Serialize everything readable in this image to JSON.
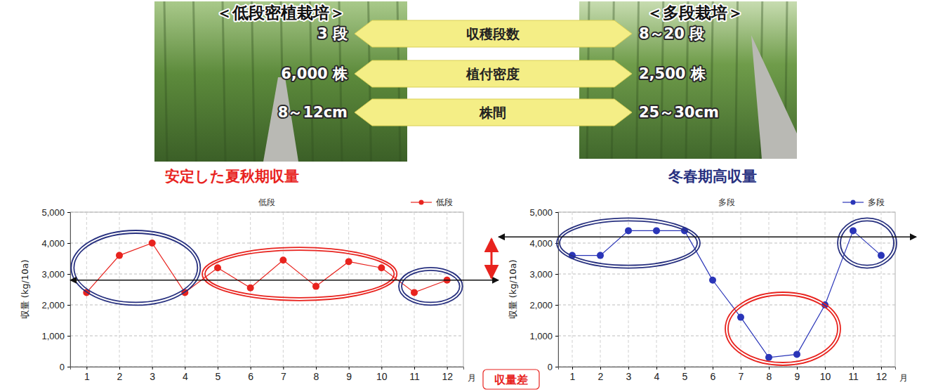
{
  "comparison": {
    "rows": [
      "収穫段数",
      "植付密度",
      "株間"
    ],
    "left": {
      "title": "＜低段密植栽培＞",
      "caption": "安定した夏秋期収量",
      "values": [
        "3 段",
        "6,000 株",
        "8～12cm"
      ]
    },
    "right": {
      "title": "＜多段栽培＞",
      "caption": "冬春期高収量",
      "values": [
        "8～20 段",
        "2,500 株",
        "25～30cm"
      ]
    }
  },
  "annotation": "収量差",
  "chart_data": [
    {
      "type": "line",
      "title": "低段",
      "x_label": "月",
      "y_label": "収量 (kg/10a)",
      "categories": [
        "1",
        "2",
        "3",
        "4",
        "5",
        "6",
        "7",
        "8",
        "9",
        "10",
        "11",
        "12"
      ],
      "series": [
        {
          "name": "低段",
          "color": "#e8231e",
          "marker": "circle",
          "values": [
            2400,
            3600,
            4000,
            2400,
            3200,
            2550,
            3450,
            2600,
            3400,
            3200,
            2400,
            2800
          ]
        }
      ],
      "ylim": [
        0,
        5000
      ],
      "yticks": [
        0,
        {
          "value": 1000,
          "label": "1,000"
        },
        {
          "value": 2000,
          "label": "2,000"
        },
        {
          "value": 3000,
          "label": "3,000"
        },
        {
          "value": 4000,
          "label": "4,000"
        },
        {
          "value": 5000,
          "label": "5,000"
        }
      ],
      "grid": true,
      "legend": "top-right",
      "reference_line": 2800
    },
    {
      "type": "line",
      "title": "多段",
      "x_label": "月",
      "y_label": "収量 (kg/10a)",
      "categories": [
        "1",
        "2",
        "3",
        "4",
        "5",
        "6",
        "7",
        "8",
        "9",
        "10",
        "11",
        "12"
      ],
      "series": [
        {
          "name": "多段",
          "color": "#2a35b8",
          "marker": "circle",
          "values": [
            3600,
            3600,
            4400,
            4400,
            4400,
            2800,
            1600,
            300,
            400,
            2000,
            4400,
            3600
          ]
        }
      ],
      "ylim": [
        0,
        5000
      ],
      "yticks": [
        0,
        {
          "value": 1000,
          "label": "1,000"
        },
        {
          "value": 2000,
          "label": "2,000"
        },
        {
          "value": 3000,
          "label": "3,000"
        },
        {
          "value": 4000,
          "label": "4,000"
        },
        {
          "value": 5000,
          "label": "5,000"
        }
      ],
      "grid": true,
      "legend": "top-right",
      "reference_line": 4200
    }
  ]
}
